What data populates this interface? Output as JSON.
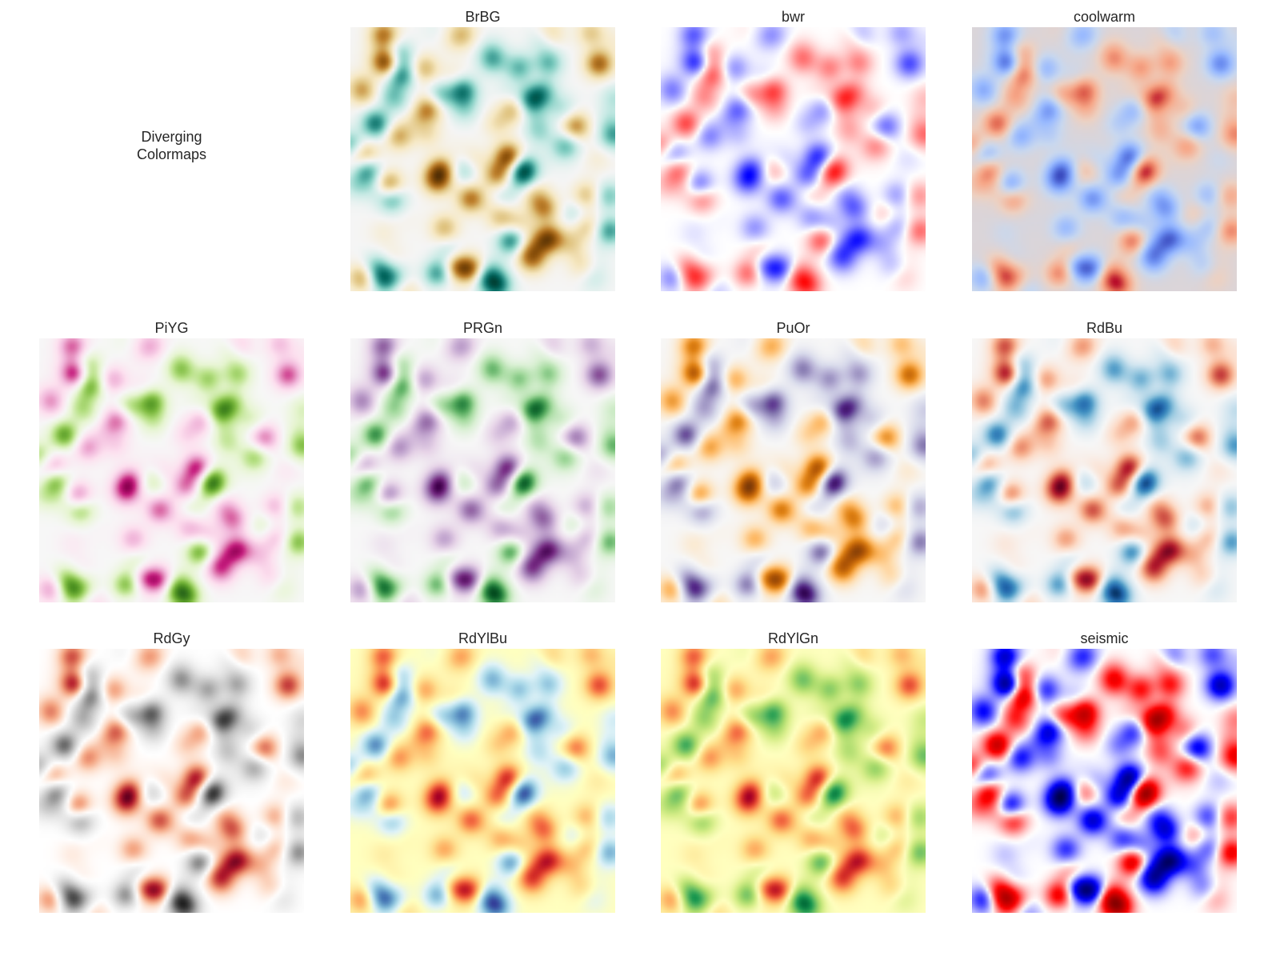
{
  "figure": {
    "heading_lines": [
      "Diverging",
      "Colormaps"
    ]
  },
  "chart_data": {
    "type": "heatmap",
    "title": "Diverging Colormaps",
    "colormaps": [
      "BrBG",
      "bwr",
      "coolwarm",
      "PiYG",
      "PRGn",
      "PuOr",
      "RdBu",
      "RdGy",
      "RdYlBu",
      "RdYlGn",
      "seismic"
    ],
    "colormap_stops": {
      "BrBG": [
        "#543005",
        "#8c510a",
        "#bf812d",
        "#dfc27d",
        "#f6e8c3",
        "#f5f5f5",
        "#c7eae5",
        "#80cdc1",
        "#35978f",
        "#01665e",
        "#003c30"
      ],
      "bwr": [
        "#0000ff",
        "#ffffff",
        "#ff0000"
      ],
      "coolwarm": [
        "#3b4cc0",
        "#688aef",
        "#99baff",
        "#c9d8ef",
        "#edd1c2",
        "#f7a889",
        "#e26952",
        "#b40426"
      ],
      "PiYG": [
        "#8e0152",
        "#c51b7d",
        "#de77ae",
        "#f1b6da",
        "#fde0ef",
        "#f7f7f7",
        "#e6f5d0",
        "#b8e186",
        "#7fbc41",
        "#4d9221",
        "#276419"
      ],
      "PRGn": [
        "#40004b",
        "#762a83",
        "#9970ab",
        "#c2a5cf",
        "#e7d4e8",
        "#f7f7f7",
        "#d9f0d3",
        "#a6dba0",
        "#5aae61",
        "#1b7837",
        "#00441b"
      ],
      "PuOr": [
        "#7f3b08",
        "#b35806",
        "#e08214",
        "#fdb863",
        "#fee0b6",
        "#f7f7f7",
        "#d8daeb",
        "#b2abd2",
        "#8073ac",
        "#542788",
        "#2d004b"
      ],
      "RdBu": [
        "#67001f",
        "#b2182b",
        "#d6604d",
        "#f4a582",
        "#fddbc7",
        "#f7f7f7",
        "#d1e5f0",
        "#92c5de",
        "#4393c3",
        "#2166ac",
        "#053061"
      ],
      "RdGy": [
        "#67001f",
        "#b2182b",
        "#d6604d",
        "#f4a582",
        "#fddbc7",
        "#ffffff",
        "#e0e0e0",
        "#bababa",
        "#878787",
        "#4d4d4d",
        "#1a1a1a"
      ],
      "RdYlBu": [
        "#a50026",
        "#d73027",
        "#f46d43",
        "#fdae61",
        "#fee090",
        "#ffffbf",
        "#e0f3f8",
        "#abd9e9",
        "#74add1",
        "#4575b4",
        "#313695"
      ],
      "RdYlGn": [
        "#a50026",
        "#d73027",
        "#f46d43",
        "#fdae61",
        "#fee08b",
        "#ffffbf",
        "#d9ef8b",
        "#a6d96a",
        "#66bd63",
        "#1a9850",
        "#006837"
      ],
      "seismic": [
        "#00004c",
        "#0000ff",
        "#ffffff",
        "#ff0000",
        "#800000"
      ]
    },
    "axes_visible": false,
    "grid": false
  }
}
